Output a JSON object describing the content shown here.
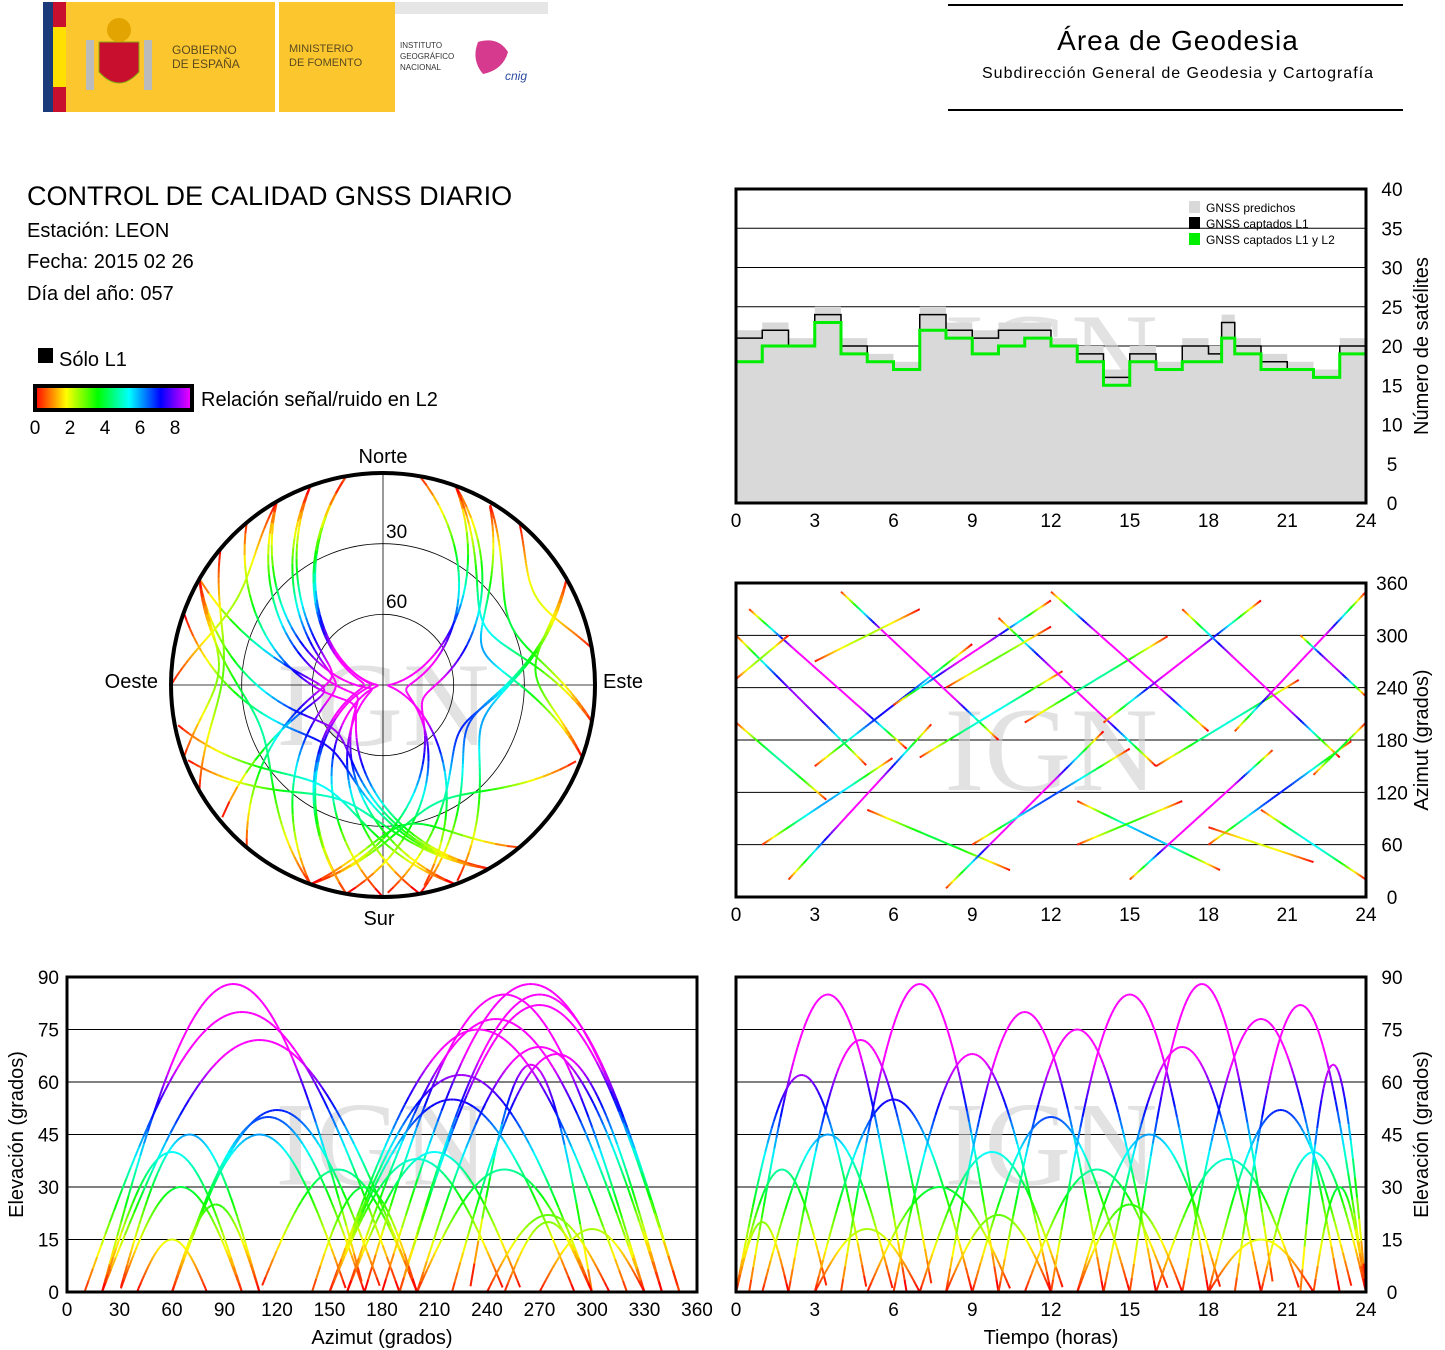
{
  "header": {
    "logo_text": [
      "GOBIERNO DE ESPAÑA",
      "MINISTERIO DE FOMENTO",
      "INSTITUTO GEOGRÁFICO NACIONAL",
      "cnig"
    ],
    "title": "Área de Geodesia",
    "subtitle": "Subdirección General de Geodesia y Cartografía"
  },
  "report": {
    "title": "CONTROL DE CALIDAD GNSS DIARIO",
    "station": "Estación: LEON",
    "date": "Fecha: 2015 02 26",
    "doy": "Día del año: 057"
  },
  "legend": {
    "l1_only": "Sólo L1",
    "snr_label": "Relación señal/ruido en L2",
    "snr_ticks": [
      "0",
      "2",
      "4",
      "6",
      "8"
    ],
    "colors": {
      "l1_only": "#000000",
      "scale": [
        "#ff0000",
        "#ffff00",
        "#00ff00",
        "#00ffff",
        "#0000ff",
        "#ff00ff"
      ]
    }
  },
  "watermark": "IGN",
  "chart_data": [
    {
      "id": "satellite-count",
      "type": "line",
      "xlabel": "",
      "ylabel": "Número de satélites",
      "xlim": [
        0,
        24
      ],
      "ylim": [
        0,
        40
      ],
      "xticks": [
        "0",
        "3",
        "6",
        "9",
        "12",
        "15",
        "18",
        "21",
        "24"
      ],
      "yticks": [
        "0",
        "5",
        "10",
        "15",
        "20",
        "25",
        "30",
        "35",
        "40"
      ],
      "grid": true,
      "legend_position": "top-right",
      "x": [
        0,
        1,
        2,
        3,
        3.5,
        4,
        5,
        6,
        7,
        8,
        9,
        10,
        11,
        12,
        13,
        14,
        15,
        16,
        17,
        18,
        18.5,
        19,
        20,
        21,
        22,
        23,
        24
      ],
      "series": [
        {
          "name": "GNSS predichos",
          "color": "#d9d9d9",
          "values": [
            22,
            23,
            21,
            25,
            25,
            21,
            19,
            18,
            25,
            23,
            22,
            23,
            23,
            21,
            20,
            17,
            20,
            18,
            21,
            20,
            24,
            21,
            19,
            18,
            17,
            21,
            18
          ]
        },
        {
          "name": "GNSS captados L1",
          "color": "#000000",
          "values": [
            21,
            22,
            20,
            24,
            24,
            20,
            18,
            17,
            24,
            22,
            21,
            22,
            22,
            20,
            19,
            16,
            19,
            17,
            20,
            19,
            23,
            20,
            18,
            17,
            16,
            20,
            17
          ]
        },
        {
          "name": "GNSS captados L1 y L2",
          "color": "#00ee00",
          "values": [
            18,
            20,
            20,
            23,
            23,
            19,
            18,
            17,
            22,
            21,
            19,
            20,
            21,
            20,
            18,
            15,
            18,
            17,
            18,
            18,
            21,
            19,
            17,
            17,
            16,
            19,
            16
          ]
        }
      ]
    },
    {
      "id": "satellite-passes",
      "type": "scatter",
      "description_fields": [
        "rise_hour",
        "set_hour",
        "max_elevation_deg",
        "azimuth_rise_deg",
        "azimuth_set_deg"
      ],
      "passes": [
        [
          0,
          5,
          62,
          300,
          150
        ],
        [
          0,
          3.5,
          35,
          200,
          110
        ],
        [
          0.5,
          6.5,
          85,
          330,
          170
        ],
        [
          1,
          6,
          45,
          60,
          160
        ],
        [
          2,
          7.5,
          72,
          20,
          200
        ],
        [
          3,
          9,
          55,
          150,
          290
        ],
        [
          4,
          10,
          88,
          350,
          180
        ],
        [
          5,
          10.5,
          30,
          100,
          30
        ],
        [
          6,
          12,
          68,
          220,
          340
        ],
        [
          7,
          12.5,
          40,
          160,
          260
        ],
        [
          8,
          14,
          80,
          10,
          190
        ],
        [
          9,
          15,
          50,
          60,
          170
        ],
        [
          10,
          16,
          75,
          320,
          150
        ],
        [
          11,
          16.5,
          35,
          200,
          300
        ],
        [
          12,
          18,
          85,
          350,
          190
        ],
        [
          13,
          18.5,
          45,
          110,
          30
        ],
        [
          14,
          20,
          70,
          200,
          340
        ],
        [
          15,
          20.5,
          88,
          20,
          170
        ],
        [
          16,
          21.5,
          38,
          150,
          250
        ],
        [
          17,
          23,
          78,
          330,
          160
        ],
        [
          18,
          23.5,
          52,
          60,
          180
        ],
        [
          19,
          24,
          82,
          190,
          350
        ],
        [
          20,
          24,
          40,
          100,
          20
        ],
        [
          21.5,
          24,
          65,
          300,
          230
        ],
        [
          22,
          24,
          30,
          140,
          200
        ],
        [
          0,
          2,
          20,
          250,
          300
        ],
        [
          8,
          12,
          22,
          240,
          310
        ],
        [
          13,
          17,
          25,
          60,
          110
        ],
        [
          3,
          7,
          18,
          270,
          330
        ],
        [
          18,
          22,
          15,
          80,
          40
        ]
      ]
    },
    {
      "id": "skyplot",
      "type": "scatter",
      "labels": {
        "north": "Norte",
        "south": "Sur",
        "west": "Oeste",
        "east": "Este"
      },
      "ring_labels": [
        "30",
        "60"
      ]
    },
    {
      "id": "azimuth-time",
      "type": "scatter",
      "xlabel": "",
      "ylabel": "Azimut (grados)",
      "xlim": [
        0,
        24
      ],
      "ylim": [
        0,
        360
      ],
      "xticks": [
        "0",
        "3",
        "6",
        "9",
        "12",
        "15",
        "18",
        "21",
        "24"
      ],
      "yticks": [
        "0",
        "60",
        "120",
        "180",
        "240",
        "300",
        "360"
      ],
      "grid": true
    },
    {
      "id": "elevation-azimuth",
      "type": "scatter",
      "xlabel": "Azimut (grados)",
      "ylabel": "Elevación (grados)",
      "xlim": [
        0,
        360
      ],
      "ylim": [
        0,
        90
      ],
      "xticks": [
        "0",
        "30",
        "60",
        "90",
        "120",
        "150",
        "180",
        "210",
        "240",
        "270",
        "300",
        "330",
        "360"
      ],
      "yticks": [
        "0",
        "15",
        "30",
        "45",
        "60",
        "75",
        "90"
      ],
      "grid": true
    },
    {
      "id": "elevation-time",
      "type": "scatter",
      "xlabel": "Tiempo (horas)",
      "ylabel": "Elevación (grados)",
      "xlim": [
        0,
        24
      ],
      "ylim": [
        0,
        90
      ],
      "xticks": [
        "0",
        "3",
        "6",
        "9",
        "12",
        "15",
        "18",
        "21",
        "24"
      ],
      "yticks": [
        "0",
        "15",
        "30",
        "45",
        "60",
        "75",
        "90"
      ],
      "grid": true
    }
  ]
}
